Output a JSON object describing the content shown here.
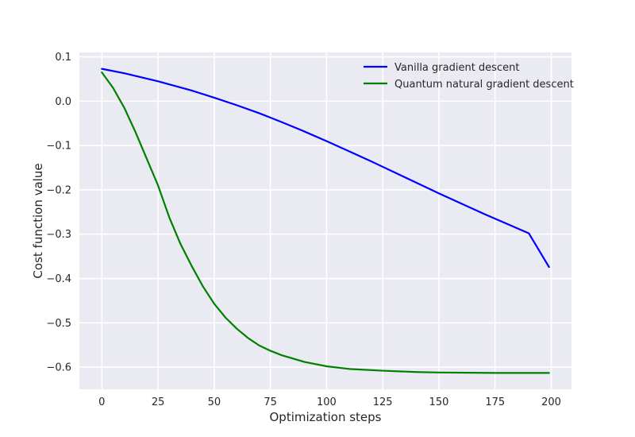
{
  "chart_data": {
    "type": "line",
    "title": "",
    "xlabel": "Optimization steps",
    "ylabel": "Cost function value",
    "xlim": [
      -10,
      209
    ],
    "ylim": [
      -0.65,
      0.11
    ],
    "xticks": [
      0,
      25,
      50,
      75,
      100,
      125,
      150,
      175,
      200
    ],
    "xtick_labels": [
      "0",
      "25",
      "50",
      "75",
      "100",
      "125",
      "150",
      "175",
      "200"
    ],
    "yticks": [
      0.1,
      0.0,
      -0.1,
      -0.2,
      -0.3,
      -0.4,
      -0.5,
      -0.6
    ],
    "ytick_labels": [
      "0.1",
      "0.0",
      "−0.1",
      "−0.2",
      "−0.3",
      "−0.4",
      "−0.5",
      "−0.6"
    ],
    "grid": true,
    "legend_position": "top-right",
    "background": "#eaeaf2",
    "series": [
      {
        "name": "Vanilla gradient descent",
        "color": "#0000ff",
        "x": [
          0,
          10,
          20,
          25,
          30,
          40,
          50,
          60,
          70,
          75,
          80,
          90,
          100,
          110,
          120,
          125,
          130,
          140,
          150,
          160,
          170,
          175,
          180,
          190,
          199
        ],
        "y": [
          0.073,
          0.063,
          0.051,
          0.045,
          0.038,
          0.024,
          0.008,
          -0.009,
          -0.027,
          -0.037,
          -0.047,
          -0.068,
          -0.09,
          -0.113,
          -0.136,
          -0.148,
          -0.16,
          -0.184,
          -0.208,
          -0.231,
          -0.254,
          -0.265,
          -0.276,
          -0.298,
          -0.374
        ]
      },
      {
        "name": "Quantum natural gradient descent",
        "color": "#008000",
        "x": [
          0,
          5,
          10,
          15,
          20,
          25,
          30,
          35,
          40,
          45,
          50,
          55,
          60,
          65,
          70,
          75,
          80,
          90,
          100,
          110,
          125,
          140,
          150,
          175,
          199
        ],
        "y": [
          0.065,
          0.03,
          -0.015,
          -0.07,
          -0.13,
          -0.19,
          -0.262,
          -0.322,
          -0.372,
          -0.418,
          -0.457,
          -0.488,
          -0.513,
          -0.534,
          -0.551,
          -0.563,
          -0.573,
          -0.588,
          -0.598,
          -0.604,
          -0.608,
          -0.611,
          -0.612,
          -0.613,
          -0.613
        ]
      }
    ]
  }
}
